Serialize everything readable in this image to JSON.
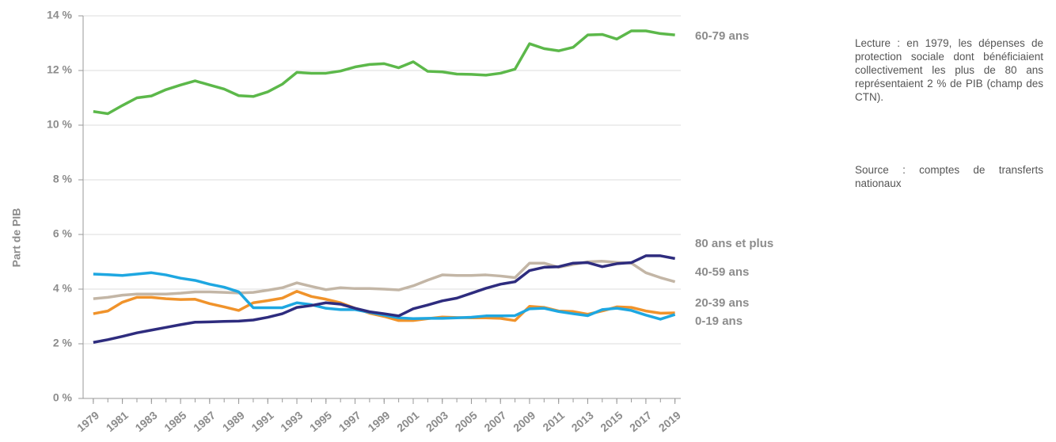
{
  "chart_data": {
    "type": "line",
    "y_label": "Part de PIB",
    "annotations": [
      "Lecture : en 1979, les dépenses de protection sociale dont bénéficiaient collectivement les plus de 80 ans représentaient 2 % de PIB (champ des CTN).",
      "Source : comptes de transferts nationaux"
    ],
    "x": [
      1979,
      1980,
      1981,
      1982,
      1983,
      1984,
      1985,
      1986,
      1987,
      1988,
      1989,
      1990,
      1991,
      1992,
      1993,
      1994,
      1995,
      1996,
      1997,
      1998,
      1999,
      2000,
      2001,
      2002,
      2003,
      2004,
      2005,
      2006,
      2007,
      2008,
      2009,
      2010,
      2011,
      2012,
      2013,
      2014,
      2015,
      2016,
      2017,
      2018,
      2019
    ],
    "xlim": [
      1978.3,
      2019.4
    ],
    "xticks": [
      1979,
      1981,
      1983,
      1985,
      1987,
      1989,
      1991,
      1993,
      1995,
      1997,
      1999,
      2001,
      2003,
      2005,
      2007,
      2009,
      2011,
      2013,
      2015,
      2017,
      2019
    ],
    "ylim": [
      0,
      14
    ],
    "yticks": [
      {
        "value": 0,
        "label": "0 %"
      },
      {
        "value": 2,
        "label": "2 %"
      },
      {
        "value": 4,
        "label": "4 %"
      },
      {
        "value": 6,
        "label": "6 %"
      },
      {
        "value": 8,
        "label": "8 %"
      },
      {
        "value": 10,
        "label": "10 %"
      },
      {
        "value": 12,
        "label": "12 %"
      },
      {
        "value": 14,
        "label": "14 %"
      }
    ],
    "grid": true,
    "series": [
      {
        "name": "60-79 ans",
        "color": "#5cb84a",
        "values": [
          10.5,
          10.42,
          10.72,
          11.0,
          11.07,
          11.3,
          11.47,
          11.62,
          11.47,
          11.32,
          11.08,
          11.05,
          11.22,
          11.5,
          11.93,
          11.9,
          11.9,
          11.98,
          12.13,
          12.22,
          12.25,
          12.1,
          12.32,
          11.97,
          11.95,
          11.87,
          11.86,
          11.83,
          11.9,
          12.05,
          12.98,
          12.8,
          12.72,
          12.85,
          13.3,
          13.32,
          13.15,
          13.45,
          13.45,
          13.35,
          13.3
        ]
      },
      {
        "name": "80 ans et plus",
        "color": "#2e2c7e",
        "values": [
          2.05,
          2.15,
          2.27,
          2.4,
          2.5,
          2.6,
          2.7,
          2.79,
          2.8,
          2.82,
          2.83,
          2.87,
          2.97,
          3.1,
          3.33,
          3.4,
          3.5,
          3.45,
          3.3,
          3.17,
          3.1,
          3.02,
          3.28,
          3.42,
          3.57,
          3.67,
          3.85,
          4.03,
          4.18,
          4.27,
          4.68,
          4.8,
          4.82,
          4.95,
          4.97,
          4.82,
          4.93,
          4.97,
          5.22,
          5.22,
          5.12
        ]
      },
      {
        "name": "40-59 ans",
        "color": "#c3b6a6",
        "values": [
          3.65,
          3.7,
          3.78,
          3.82,
          3.82,
          3.82,
          3.85,
          3.9,
          3.9,
          3.88,
          3.86,
          3.88,
          3.96,
          4.05,
          4.23,
          4.1,
          3.98,
          4.05,
          4.02,
          4.02,
          4.0,
          3.97,
          4.12,
          4.33,
          4.52,
          4.5,
          4.5,
          4.52,
          4.48,
          4.42,
          4.95,
          4.95,
          4.8,
          4.9,
          5.0,
          5.02,
          4.98,
          4.95,
          4.6,
          4.42,
          4.27
        ]
      },
      {
        "name": "20-39 ans",
        "color": "#f0932b",
        "values": [
          3.1,
          3.2,
          3.52,
          3.7,
          3.7,
          3.65,
          3.62,
          3.63,
          3.47,
          3.35,
          3.22,
          3.5,
          3.58,
          3.67,
          3.92,
          3.73,
          3.63,
          3.5,
          3.3,
          3.12,
          3.0,
          2.85,
          2.85,
          2.92,
          2.98,
          2.96,
          2.95,
          2.95,
          2.93,
          2.85,
          3.37,
          3.33,
          3.2,
          3.18,
          3.08,
          3.2,
          3.35,
          3.33,
          3.2,
          3.12,
          3.13
        ]
      },
      {
        "name": "0-19 ans",
        "color": "#1ea7e1",
        "values": [
          4.55,
          4.53,
          4.5,
          4.55,
          4.6,
          4.52,
          4.4,
          4.32,
          4.18,
          4.07,
          3.9,
          3.32,
          3.32,
          3.32,
          3.5,
          3.43,
          3.3,
          3.25,
          3.25,
          3.15,
          3.05,
          2.95,
          2.92,
          2.93,
          2.93,
          2.95,
          2.97,
          3.02,
          3.02,
          3.03,
          3.28,
          3.3,
          3.18,
          3.1,
          3.03,
          3.25,
          3.3,
          3.22,
          3.05,
          2.9,
          3.07
        ]
      }
    ]
  }
}
